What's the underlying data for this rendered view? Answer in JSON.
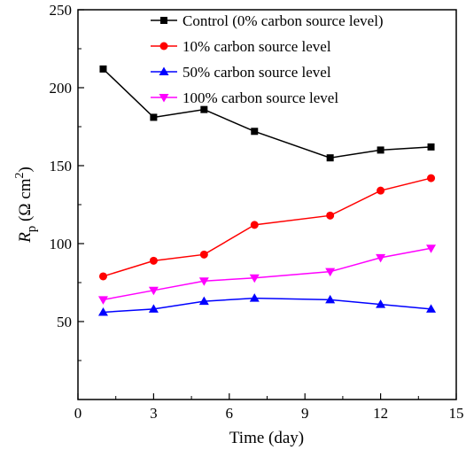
{
  "chart_data": {
    "type": "line",
    "title": "",
    "xlabel": "Time (day)",
    "ylabel": {
      "symbol": "R",
      "subscript": "p",
      "unit_open": " (Ω cm",
      "unit_sup": "2",
      "unit_close": ")"
    },
    "xlim": [
      0,
      15
    ],
    "ylim": [
      0,
      250
    ],
    "xticks": [
      "0",
      "3",
      "6",
      "9",
      "12",
      "15"
    ],
    "yticks": [
      "50",
      "100",
      "150",
      "200",
      "250"
    ],
    "grid": false,
    "legend_position": "top-right",
    "x": [
      1,
      3,
      5,
      7,
      10,
      12,
      14
    ],
    "series": [
      {
        "name": "Control (0% carbon source level)",
        "color": "#000000",
        "marker": "square",
        "values": [
          212,
          181,
          186,
          172,
          155,
          160,
          162
        ]
      },
      {
        "name": "10% carbon source level",
        "color": "#ff0000",
        "marker": "circle",
        "values": [
          79,
          89,
          93,
          112,
          118,
          134,
          142
        ]
      },
      {
        "name": "50% carbon source level",
        "color": "#0000ff",
        "marker": "triangle-up",
        "values": [
          56,
          58,
          63,
          65,
          64,
          61,
          58
        ]
      },
      {
        "name": "100% carbon source level",
        "color": "#ff00ff",
        "marker": "triangle-down",
        "values": [
          64,
          70,
          76,
          78,
          82,
          91,
          97
        ]
      }
    ]
  }
}
